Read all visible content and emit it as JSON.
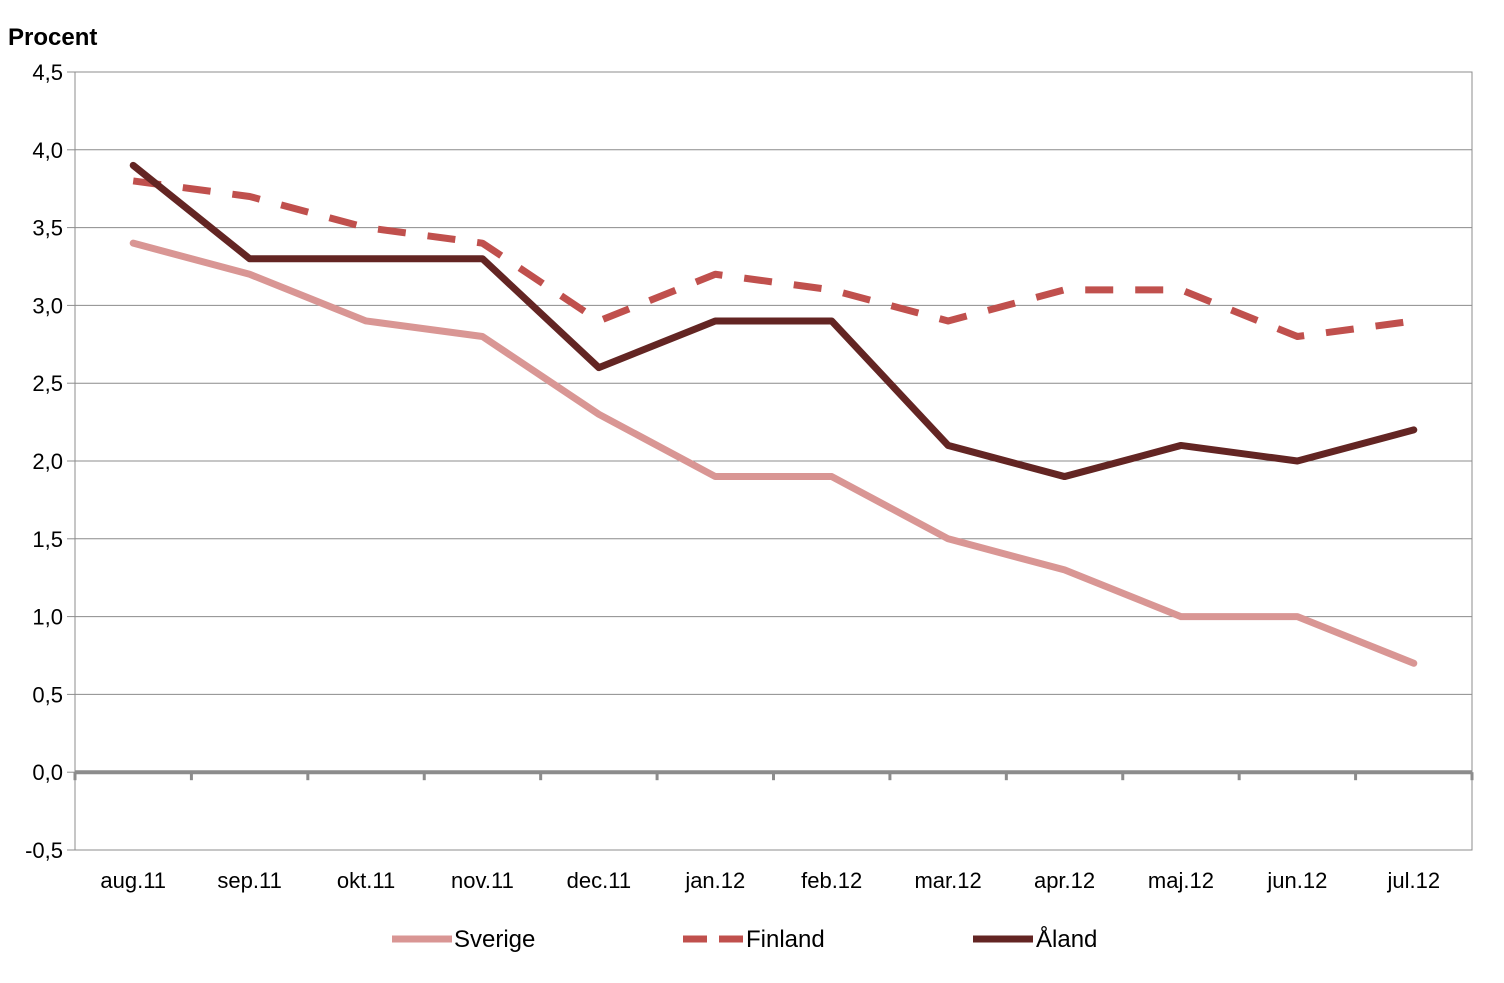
{
  "chart_data": {
    "type": "line",
    "ylabel": "Procent",
    "ylim": [
      -0.5,
      4.5
    ],
    "yticks": [
      "4,5",
      "4,0",
      "3,5",
      "3,0",
      "2,5",
      "2,0",
      "1,5",
      "1,0",
      "0,5",
      "0,0",
      "-0,5"
    ],
    "ytick_values": [
      4.5,
      4.0,
      3.5,
      3.0,
      2.5,
      2.0,
      1.5,
      1.0,
      0.5,
      0.0,
      -0.5
    ],
    "categories": [
      "aug.11",
      "sep.11",
      "okt.11",
      "nov.11",
      "dec.11",
      "jan.12",
      "feb.12",
      "mar.12",
      "apr.12",
      "maj.12",
      "jun.12",
      "jul.12"
    ],
    "grid": true,
    "legend_position": "bottom",
    "series": [
      {
        "name": "Sverige",
        "color": "#d99694",
        "style": "solid",
        "values": [
          3.4,
          3.2,
          2.9,
          2.8,
          2.3,
          1.9,
          1.9,
          1.5,
          1.3,
          1.0,
          1.0,
          0.7
        ]
      },
      {
        "name": "Finland",
        "color": "#c0504d",
        "style": "dashed",
        "values": [
          3.8,
          3.7,
          3.5,
          3.4,
          2.9,
          3.2,
          3.1,
          2.9,
          3.1,
          3.1,
          2.8,
          2.9
        ]
      },
      {
        "name": "Åland",
        "color": "#632523",
        "style": "solid",
        "values": [
          3.9,
          3.3,
          3.3,
          3.3,
          2.6,
          2.9,
          2.9,
          2.1,
          1.9,
          2.1,
          2.0,
          2.2
        ]
      }
    ]
  }
}
